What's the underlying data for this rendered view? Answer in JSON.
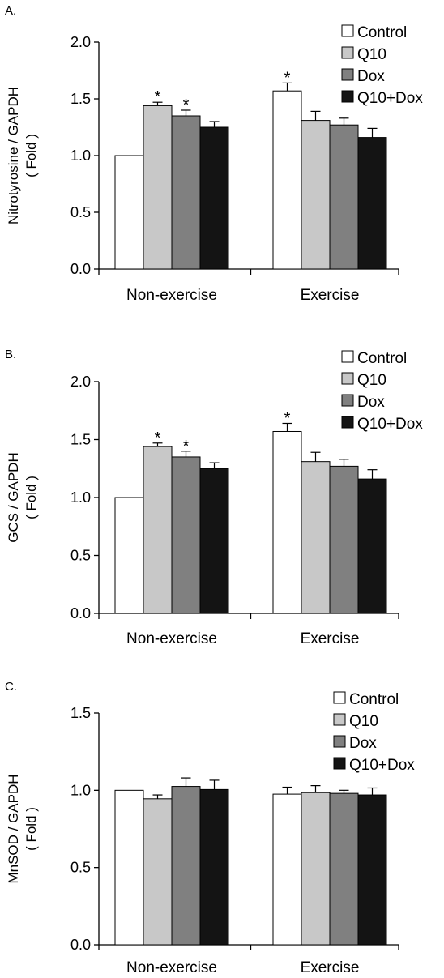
{
  "legend_colors": [
    "#ffffff",
    "#c8c8c8",
    "#808080",
    "#141414"
  ],
  "chart_data": [
    {
      "panel_label": "A.",
      "type": "bar",
      "ylabel_lines": [
        "Nitrotyrosine / GAPDH",
        "( Fold )"
      ],
      "ylim": [
        0,
        2.0
      ],
      "yticks": [
        "0.0",
        "0.5",
        "1.0",
        "1.5",
        "2.0"
      ],
      "categories": [
        "Non-exercise",
        "Exercise"
      ],
      "series": [
        {
          "name": "Control",
          "values": [
            1.0,
            1.57
          ],
          "errors": [
            0,
            0.07
          ],
          "sig": [
            false,
            true
          ]
        },
        {
          "name": "Q10",
          "values": [
            1.44,
            1.31
          ],
          "errors": [
            0.03,
            0.08
          ],
          "sig": [
            true,
            false
          ]
        },
        {
          "name": "Dox",
          "values": [
            1.35,
            1.27
          ],
          "errors": [
            0.05,
            0.06
          ],
          "sig": [
            true,
            false
          ]
        },
        {
          "name": "Q10+Dox",
          "values": [
            1.25,
            1.16
          ],
          "errors": [
            0.05,
            0.08
          ],
          "sig": [
            false,
            false
          ]
        }
      ],
      "sig_symbol": "*",
      "legend_position": "top-right"
    },
    {
      "panel_label": "B.",
      "type": "bar",
      "ylabel_lines": [
        "GCS / GAPDH",
        "( Fold )"
      ],
      "ylim": [
        0,
        2.0
      ],
      "yticks": [
        "0.0",
        "0.5",
        "1.0",
        "1.5",
        "2.0"
      ],
      "categories": [
        "Non-exercise",
        "Exercise"
      ],
      "series": [
        {
          "name": "Control",
          "values": [
            1.0,
            1.57
          ],
          "errors": [
            0,
            0.07
          ],
          "sig": [
            false,
            true
          ]
        },
        {
          "name": "Q10",
          "values": [
            1.44,
            1.31
          ],
          "errors": [
            0.03,
            0.08
          ],
          "sig": [
            true,
            false
          ]
        },
        {
          "name": "Dox",
          "values": [
            1.35,
            1.27
          ],
          "errors": [
            0.05,
            0.06
          ],
          "sig": [
            true,
            false
          ]
        },
        {
          "name": "Q10+Dox",
          "values": [
            1.25,
            1.16
          ],
          "errors": [
            0.05,
            0.08
          ],
          "sig": [
            false,
            false
          ]
        }
      ],
      "sig_symbol": "*",
      "legend_position": "top-right"
    },
    {
      "panel_label": "C.",
      "type": "bar",
      "ylabel_lines": [
        "MnSOD / GAPDH",
        "( Fold )"
      ],
      "ylim": [
        0,
        1.5
      ],
      "yticks": [
        "0.0",
        "0.5",
        "1.0",
        "1.5"
      ],
      "categories": [
        "Non-exercise",
        "Exercise"
      ],
      "series": [
        {
          "name": "Control",
          "values": [
            1.0,
            0.975
          ],
          "errors": [
            0,
            0.045
          ],
          "sig": [
            false,
            false
          ]
        },
        {
          "name": "Q10",
          "values": [
            0.945,
            0.985
          ],
          "errors": [
            0.025,
            0.045
          ],
          "sig": [
            false,
            false
          ]
        },
        {
          "name": "Dox",
          "values": [
            1.025,
            0.98
          ],
          "errors": [
            0.055,
            0.02
          ],
          "sig": [
            false,
            false
          ]
        },
        {
          "name": "Q10+Dox",
          "values": [
            1.005,
            0.97
          ],
          "errors": [
            0.06,
            0.045
          ],
          "sig": [
            false,
            false
          ]
        }
      ],
      "sig_symbol": "*",
      "legend_position": "top-right"
    }
  ]
}
